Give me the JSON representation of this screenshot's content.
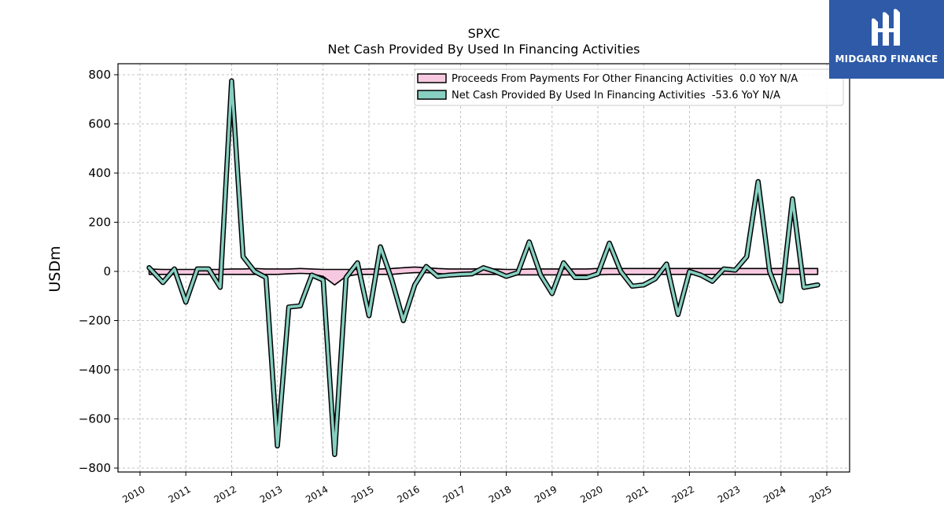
{
  "chart_data": {
    "type": "line",
    "title": "SPXC",
    "subtitle": "Net Cash Provided By Used In Financing Activities",
    "ylabel": "USDm",
    "xlabel": "",
    "ylim": [
      -820,
      845
    ],
    "xlim": [
      2009.5,
      2025.5
    ],
    "yticks": [
      -800,
      -600,
      -400,
      -200,
      0,
      200,
      400,
      600,
      800
    ],
    "ytick_labels": [
      "−800",
      "−600",
      "−400",
      "−200",
      "0",
      "200",
      "400",
      "600",
      "800"
    ],
    "xticks": [
      2010,
      2011,
      2012,
      2013,
      2014,
      2015,
      2016,
      2017,
      2018,
      2019,
      2020,
      2021,
      2022,
      2023,
      2024,
      2025
    ],
    "xtick_labels": [
      "2010",
      "2011",
      "2012",
      "2013",
      "2014",
      "2015",
      "2016",
      "2017",
      "2018",
      "2019",
      "2020",
      "2021",
      "2022",
      "2023",
      "2024",
      "2025"
    ],
    "grid": true,
    "legend_position": "top-right",
    "series": [
      {
        "name": "Proceeds From Payments For Other Financing Activities  0.0 YoY N/A",
        "style": "filled-area",
        "color": "#f7c9e0",
        "x": [
          2010.2,
          2010.5,
          2010.75,
          2011.0,
          2011.25,
          2011.5,
          2011.75,
          2012.0,
          2012.25,
          2012.5,
          2012.75,
          2013.0,
          2013.25,
          2013.5,
          2013.75,
          2014.0,
          2014.25,
          2014.5,
          2014.75,
          2015.0,
          2015.25,
          2015.5,
          2015.75,
          2016.0,
          2016.25,
          2016.5,
          2016.75,
          2017.0,
          2017.25,
          2017.5,
          2017.75,
          2018.0,
          2018.25,
          2018.5,
          2018.75,
          2019.0,
          2019.25,
          2019.5,
          2019.75,
          2020.0,
          2020.25,
          2020.5,
          2020.75,
          2021.0,
          2021.25,
          2021.5,
          2021.75,
          2022.0,
          2022.25,
          2022.5,
          2022.75,
          2023.0,
          2023.25,
          2023.5,
          2023.75,
          2024.0,
          2024.25,
          2024.5,
          2024.8
        ],
        "upper": [
          10,
          8,
          8,
          8,
          8,
          8,
          8,
          10,
          10,
          12,
          10,
          10,
          10,
          12,
          10,
          8,
          8,
          8,
          8,
          10,
          10,
          12,
          15,
          18,
          15,
          12,
          10,
          10,
          10,
          12,
          10,
          8,
          8,
          10,
          10,
          10,
          10,
          10,
          10,
          12,
          12,
          12,
          12,
          12,
          12,
          12,
          12,
          12,
          12,
          12,
          12,
          12,
          12,
          12,
          12,
          12,
          12,
          12,
          12
        ],
        "lower": [
          -12,
          -12,
          -12,
          -12,
          -12,
          -12,
          -12,
          -12,
          -12,
          -12,
          -12,
          -12,
          -10,
          -8,
          -10,
          -20,
          -55,
          -20,
          -12,
          -12,
          -12,
          -12,
          -8,
          -5,
          -5,
          -8,
          -12,
          -12,
          -12,
          -12,
          -12,
          -14,
          -14,
          -14,
          -14,
          -14,
          -14,
          -14,
          -14,
          -14,
          -12,
          -12,
          -12,
          -12,
          -12,
          -12,
          -12,
          -12,
          -12,
          -12,
          -12,
          -12,
          -12,
          -12,
          -12,
          -12,
          -12,
          -12,
          -12
        ]
      },
      {
        "name": "Net Cash Provided By Used In Financing Activities  -53.6 YoY N/A",
        "style": "line",
        "color": "#86cfc1",
        "x": [
          2010.2,
          2010.5,
          2010.75,
          2011.0,
          2011.25,
          2011.5,
          2011.75,
          2012.0,
          2012.25,
          2012.5,
          2012.75,
          2013.0,
          2013.25,
          2013.5,
          2013.75,
          2014.0,
          2014.25,
          2014.5,
          2014.75,
          2015.0,
          2015.25,
          2015.5,
          2015.75,
          2016.0,
          2016.25,
          2016.5,
          2016.75,
          2017.0,
          2017.25,
          2017.5,
          2017.75,
          2018.0,
          2018.25,
          2018.5,
          2018.75,
          2019.0,
          2019.25,
          2019.5,
          2019.75,
          2020.0,
          2020.25,
          2020.5,
          2020.75,
          2021.0,
          2021.25,
          2021.5,
          2021.75,
          2022.0,
          2022.25,
          2022.5,
          2022.75,
          2023.0,
          2023.25,
          2023.5,
          2023.75,
          2024.0,
          2024.25,
          2024.5,
          2024.8
        ],
        "values": [
          15,
          -45,
          10,
          -125,
          10,
          10,
          -65,
          775,
          60,
          0,
          -25,
          -710,
          -145,
          -140,
          -15,
          -35,
          -745,
          -25,
          35,
          -180,
          100,
          -35,
          -200,
          -55,
          20,
          -20,
          -15,
          -12,
          -10,
          15,
          0,
          -20,
          -5,
          120,
          -15,
          -90,
          35,
          -25,
          -25,
          -10,
          115,
          0,
          -60,
          -55,
          -30,
          30,
          -175,
          0,
          -15,
          -40,
          10,
          5,
          60,
          365,
          0,
          -120,
          295,
          -65,
          -55
        ]
      }
    ]
  },
  "logo": {
    "text": "MIDGARD FINANCE"
  }
}
